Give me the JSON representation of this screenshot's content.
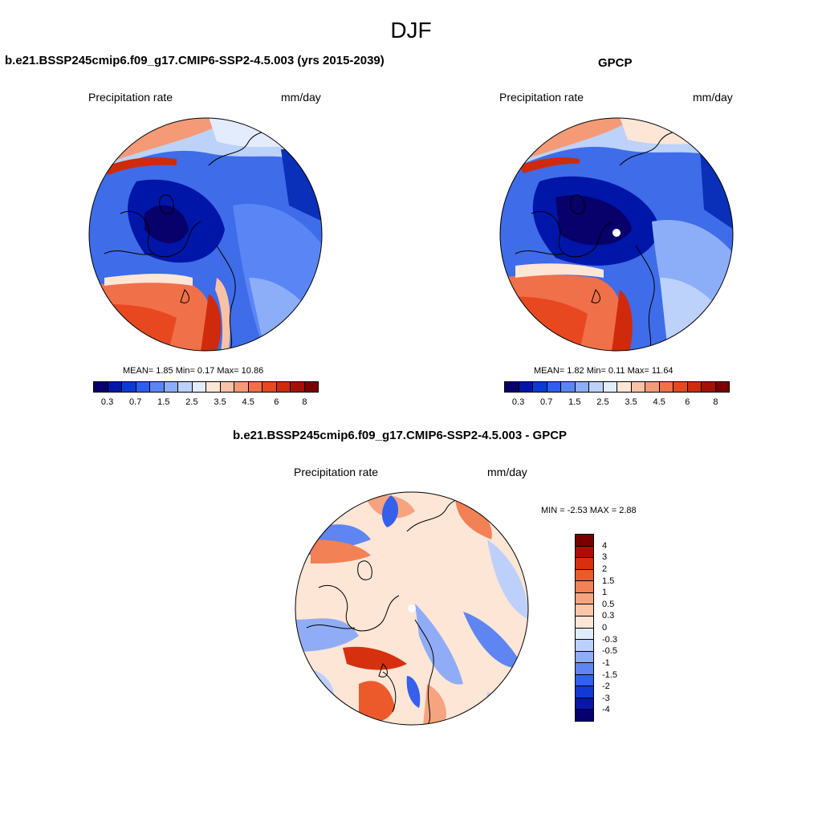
{
  "title": "DJF",
  "panels": {
    "model": {
      "title": "b.e21.BSSP245cmip6.f09_g17.CMIP6-SSP2-4.5.003 (yrs 2015-2039)",
      "left_label": "Precipitation rate",
      "right_label": "mm/day",
      "stats": "MEAN=   1.85  Min=   0.17  Max=  10.86"
    },
    "obs": {
      "title": "GPCP",
      "left_label": "Precipitation rate",
      "right_label": "mm/day",
      "stats": "MEAN=   1.82  Min=   0.11  Max=  11.64"
    },
    "diff": {
      "title": "b.e21.BSSP245cmip6.f09_g17.CMIP6-SSP2-4.5.003 - GPCP",
      "left_label": "Precipitation rate",
      "right_label": "mm/day",
      "stats": "MIN =  -2.53 MAX =   2.88"
    }
  },
  "colorbar": {
    "colors": [
      "#08006b",
      "#0016a8",
      "#0a3bd6",
      "#2e5ef0",
      "#5a86f5",
      "#8caef8",
      "#bcd2fb",
      "#e3ecfd",
      "#fde6d6",
      "#f9c2a5",
      "#f59a77",
      "#f0704a",
      "#e8481f",
      "#cf2a0c",
      "#a51006",
      "#7a0000"
    ],
    "ticks": [
      "0.3",
      "0.7",
      "1.5",
      "2.5",
      "3.5",
      "4.5",
      "6",
      "8"
    ]
  },
  "diff_colorbar": {
    "colors": [
      "#7a0000",
      "#b00c04",
      "#d7300f",
      "#ec5a2c",
      "#f28155",
      "#f5a47f",
      "#f9c6aa",
      "#fde6d6",
      "#e2ebfd",
      "#bdd0fb",
      "#90acf7",
      "#5f85f2",
      "#3560ec",
      "#1239d4",
      "#0418a4",
      "#05006c"
    ],
    "ticks": [
      "4",
      "3",
      "2",
      "1.5",
      "1",
      "0.5",
      "0.3",
      "0",
      "-0.3",
      "-0.5",
      "-1",
      "-1.5",
      "-2",
      "-3",
      "-4"
    ]
  }
}
